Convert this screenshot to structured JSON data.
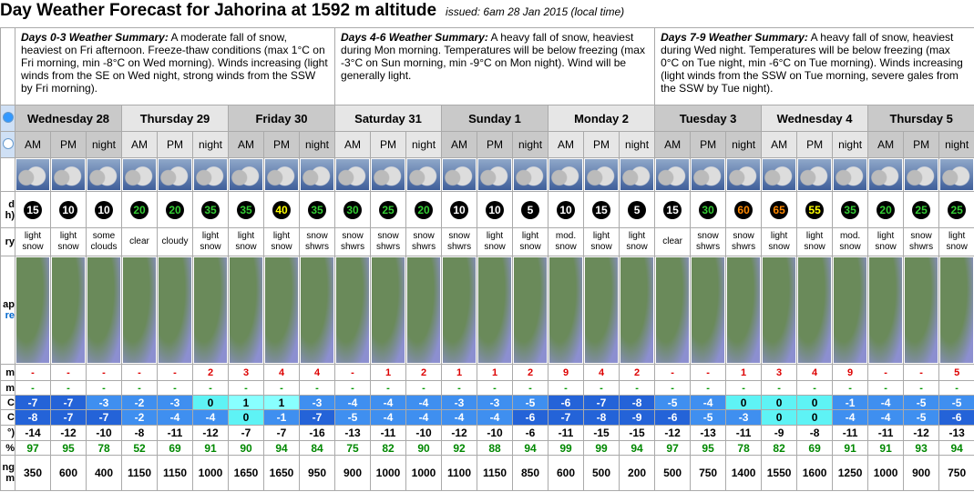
{
  "header": {
    "title": "Day Weather Forecast for Jahorina at 1592 m altitude",
    "issued": "issued: 6am 28 Jan 2015 (local time)"
  },
  "summaries": [
    {
      "label": "Days 0-3 Weather Summary:",
      "text": "A moderate fall of snow, heaviest on Fri afternoon. Freeze-thaw conditions (max 1°C on Fri morning, min -8°C on Wed morning). Winds increasing (light winds from the SE on Wed night, strong winds from the SSW by Fri morning)."
    },
    {
      "label": "Days 4-6 Weather Summary:",
      "text": "A heavy fall of snow, heaviest during Mon morning. Temperatures will be below freezing (max -3°C on Sun morning, min -9°C on Mon night). Wind will be generally light."
    },
    {
      "label": "Days 7-9 Weather Summary:",
      "text": "A heavy fall of snow, heaviest during Wed night. Temperatures will be below freezing (max 0°C on Tue night, min -6°C on Tue morning). Winds increasing (light winds from the SSW on Tue morning, severe gales from the SSW by Tue night)."
    }
  ],
  "days": [
    "Wednesday 28",
    "Thursday 29",
    "Friday 30",
    "Saturday 31",
    "Sunday 1",
    "Monday 2",
    "Tuesday 3",
    "Wednesday 4",
    "Thursday 5"
  ],
  "periods": [
    "AM",
    "PM",
    "night",
    "AM",
    "PM",
    "night",
    "AM",
    "PM",
    "night",
    "AM",
    "PM",
    "night",
    "AM",
    "PM",
    "night",
    "AM",
    "PM",
    "night",
    "AM",
    "PM",
    "night",
    "AM",
    "PM",
    "night",
    "AM",
    "PM",
    "night"
  ],
  "row_labels": {
    "wind": [
      "d",
      "h)"
    ],
    "summary": [
      "ry"
    ],
    "map": [
      "ap",
      "re"
    ],
    "snow": [
      "m"
    ],
    "rain": [
      "m"
    ],
    "max_temp": [
      "C"
    ],
    "min_temp": [
      "C"
    ],
    "chill": [
      "°)"
    ],
    "humidity": [
      "%"
    ],
    "freezing": [
      "ng",
      "m"
    ]
  },
  "rows": {
    "wind": [
      15,
      10,
      10,
      20,
      20,
      35,
      35,
      40,
      35,
      30,
      25,
      20,
      10,
      10,
      5,
      10,
      15,
      5,
      15,
      30,
      60,
      65,
      55,
      35,
      20,
      25,
      25
    ],
    "summary": [
      "light snow",
      "light snow",
      "some clouds",
      "clear",
      "cloudy",
      "light snow",
      "light snow",
      "light snow",
      "snow shwrs",
      "snow shwrs",
      "snow shwrs",
      "snow shwrs",
      "snow shwrs",
      "light snow",
      "light snow",
      "mod. snow",
      "light snow",
      "light snow",
      "clear",
      "snow shwrs",
      "snow shwrs",
      "light snow",
      "light snow",
      "mod. snow",
      "light snow",
      "snow shwrs",
      "light snow"
    ],
    "snow": [
      "-",
      "-",
      "-",
      "-",
      "-",
      2,
      3,
      4,
      4,
      "-",
      1,
      2,
      1,
      1,
      2,
      9,
      4,
      2,
      "-",
      "-",
      1,
      3,
      4,
      9,
      "-",
      "-",
      5
    ],
    "rain": [
      "-",
      "-",
      "-",
      "-",
      "-",
      "-",
      "-",
      "-",
      "-",
      "-",
      "-",
      "-",
      "-",
      "-",
      "-",
      "-",
      "-",
      "-",
      "-",
      "-",
      "-",
      "-",
      "-",
      "-",
      "-",
      "-",
      "-"
    ],
    "max_temp": [
      -7,
      -7,
      -3,
      -2,
      -3,
      0,
      1,
      1,
      -3,
      -4,
      -4,
      -4,
      -3,
      -3,
      -5,
      -6,
      -7,
      -8,
      -5,
      -4,
      0,
      0,
      0,
      -1,
      -4,
      -5,
      -5
    ],
    "min_temp": [
      -8,
      -7,
      -7,
      -2,
      -4,
      -4,
      0,
      -1,
      -7,
      -5,
      -4,
      -4,
      -4,
      -4,
      -6,
      -7,
      -8,
      -9,
      -6,
      -5,
      -3,
      0,
      0,
      -4,
      -4,
      -5,
      -6
    ],
    "chill": [
      -14,
      -12,
      -10,
      -8,
      -11,
      -12,
      -7,
      -7,
      -16,
      -13,
      -11,
      -10,
      -12,
      -10,
      -6,
      -11,
      -15,
      -15,
      -12,
      -13,
      -11,
      -9,
      -8,
      -11,
      -11,
      -12,
      -13
    ],
    "humidity": [
      97,
      95,
      78,
      52,
      69,
      91,
      90,
      94,
      84,
      75,
      82,
      90,
      92,
      88,
      94,
      99,
      99,
      94,
      97,
      95,
      78,
      82,
      69,
      91,
      91,
      93,
      94
    ],
    "freezing": [
      350,
      600,
      400,
      1150,
      1150,
      1000,
      1650,
      1650,
      950,
      900,
      1000,
      1000,
      1100,
      1150,
      850,
      600,
      500,
      200,
      500,
      750,
      1400,
      1550,
      1600,
      1250,
      1000,
      900,
      750
    ]
  }
}
